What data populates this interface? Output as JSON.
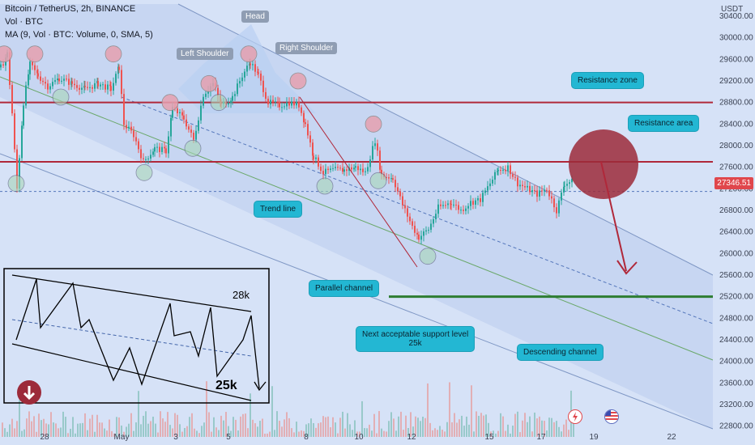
{
  "header": {
    "title": "Bitcoin / TetherUS, 2h, BINANCE",
    "vol": "Vol · BTC",
    "ma": "MA (9, Vol · BTC: Volume, 0, SMA, 5)"
  },
  "axis": {
    "currency": "USDT",
    "current_price": "27346.51"
  },
  "chart_data": {
    "type": "line",
    "x_ticks": [
      "28",
      "May",
      "3",
      "5",
      "8",
      "10",
      "12",
      "15",
      "17",
      "19",
      "22"
    ],
    "y_ticks": [
      30400,
      30000,
      29600,
      29200,
      28800,
      28400,
      28000,
      27600,
      27200,
      26800,
      26400,
      26000,
      25600,
      25200,
      24800,
      24400,
      24000,
      23600,
      23200,
      22800
    ],
    "ylim": [
      22600,
      30700
    ],
    "price_path": [
      [
        0,
        29450
      ],
      [
        8,
        29700
      ],
      [
        14,
        28600
      ],
      [
        20,
        27200
      ],
      [
        28,
        28800
      ],
      [
        36,
        29500
      ],
      [
        46,
        29300
      ],
      [
        58,
        29100
      ],
      [
        72,
        29250
      ],
      [
        88,
        29150
      ],
      [
        104,
        29050
      ],
      [
        120,
        29150
      ],
      [
        136,
        29050
      ],
      [
        146,
        29450
      ],
      [
        152,
        28400
      ],
      [
        164,
        28200
      ],
      [
        176,
        27700
      ],
      [
        190,
        27950
      ],
      [
        204,
        27900
      ],
      [
        212,
        28700
      ],
      [
        226,
        28500
      ],
      [
        238,
        28100
      ],
      [
        250,
        28950
      ],
      [
        262,
        29150
      ],
      [
        272,
        28750
      ],
      [
        286,
        28900
      ],
      [
        298,
        29300
      ],
      [
        308,
        29550
      ],
      [
        318,
        29300
      ],
      [
        330,
        28800
      ],
      [
        344,
        28750
      ],
      [
        356,
        28800
      ],
      [
        368,
        28750
      ],
      [
        376,
        28400
      ],
      [
        386,
        27800
      ],
      [
        398,
        27500
      ],
      [
        410,
        27550
      ],
      [
        424,
        27550
      ],
      [
        438,
        27600
      ],
      [
        450,
        27500
      ],
      [
        462,
        28100
      ],
      [
        470,
        27450
      ],
      [
        484,
        27400
      ],
      [
        496,
        26900
      ],
      [
        508,
        26500
      ],
      [
        516,
        26300
      ],
      [
        528,
        26450
      ],
      [
        540,
        26850
      ],
      [
        556,
        26950
      ],
      [
        568,
        26800
      ],
      [
        580,
        26950
      ],
      [
        592,
        27000
      ],
      [
        604,
        27300
      ],
      [
        614,
        27550
      ],
      [
        626,
        27600
      ],
      [
        638,
        27300
      ],
      [
        650,
        27200
      ],
      [
        662,
        27100
      ],
      [
        674,
        27200
      ],
      [
        686,
        26800
      ],
      [
        696,
        27300
      ],
      [
        708,
        27346
      ]
    ],
    "levels": {
      "resistance_zone": 28800,
      "resistance_area": 27700,
      "dashed_support": 27150,
      "support_25k": 25200
    },
    "annotations": [
      "Head",
      "Left Shoulder",
      "Right Shoulder",
      "Resistance zone",
      "Resistance area",
      "Trend line",
      "Parallel channel",
      "Next acceptable support level",
      "25k",
      "Descending channel",
      "28k",
      "25k"
    ]
  },
  "labels": {
    "head": "Head",
    "left_shoulder": "Left Shoulder",
    "right_shoulder": "Right Shoulder",
    "resistance_zone": "Resistance zone",
    "resistance_area": "Resistance area",
    "trend_line": "Trend line",
    "parallel_channel": "Parallel channel",
    "support_line1": "Next acceptable support level",
    "support_line2": "25k",
    "descending_channel": "Descending channel",
    "inset_28k": "28k",
    "inset_25k": "25k"
  },
  "colors": {
    "background": "#d6e2f7",
    "resistance": "#b0283a",
    "support": "#2e7d32",
    "callout": "#23b7d3",
    "candle_up": "#26a69a",
    "candle_down": "#ef5350"
  }
}
